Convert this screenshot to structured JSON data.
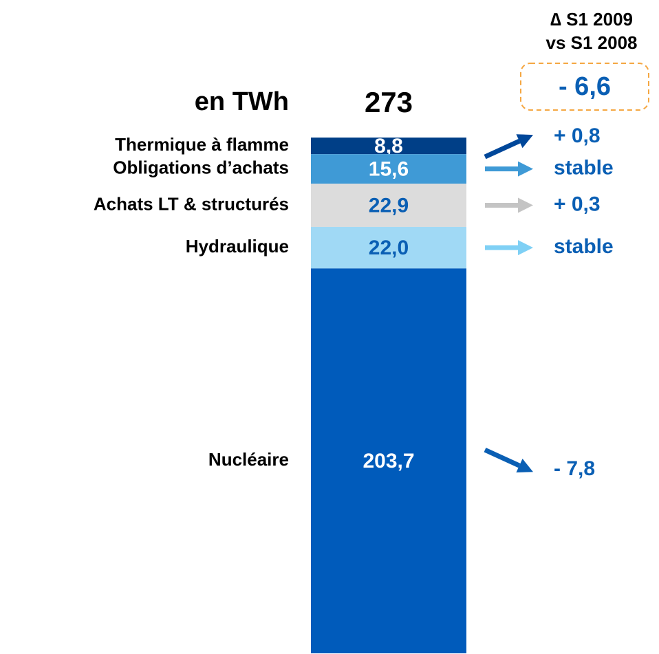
{
  "chart_data": {
    "type": "bar",
    "stacked": true,
    "unit_label": "en TWh",
    "total": 273,
    "delta_title": [
      "∆ S1 2009",
      "vs S1 2008"
    ],
    "total_delta": "- 6,6",
    "series": [
      {
        "name": "Thermique à flamme",
        "color": "#003f87",
        "label_color": "#ffffff",
        "arrow_color": "#00479a",
        "values": [
          8.8
        ],
        "value_labels": [
          "8,8"
        ],
        "delta": "+ 0,8"
      },
      {
        "name": "Obligations d’achats",
        "color": "#3f9ad6",
        "label_color": "#ffffff",
        "arrow_color": "#3f9ad6",
        "values": [
          15.6
        ],
        "value_labels": [
          "15,6"
        ],
        "delta": "stable"
      },
      {
        "name": "Achats LT & structurés",
        "color": "#dcdcdc",
        "label_color": "#0a5fb4",
        "arrow_color": "#c4c4c4",
        "values": [
          22.9
        ],
        "value_labels": [
          "22,9"
        ],
        "delta": "+ 0,3"
      },
      {
        "name": "Hydraulique",
        "color": "#a0d9f5",
        "label_color": "#0a5fb4",
        "arrow_color": "#7fd0f5",
        "values": [
          22.0
        ],
        "value_labels": [
          "22,0"
        ],
        "delta": "stable"
      },
      {
        "name": "Nucléaire",
        "color": "#005bbb",
        "label_color": "#ffffff",
        "arrow_color": "#0a5fb4",
        "values": [
          203.7
        ],
        "value_labels": [
          "203,7"
        ],
        "delta": "- 7,8"
      }
    ]
  }
}
